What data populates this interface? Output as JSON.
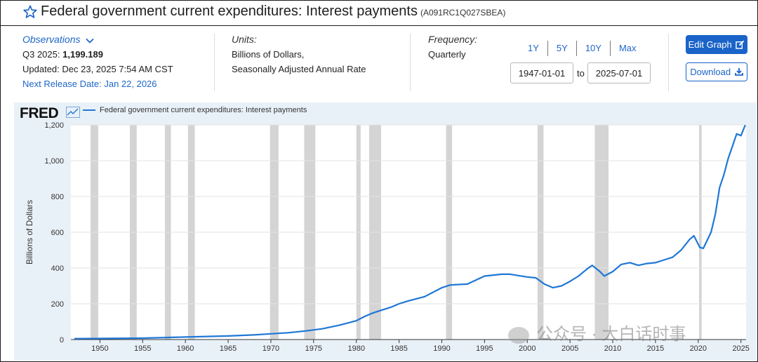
{
  "header": {
    "title": "Federal government current expenditures: Interest payments",
    "series_id": "(A091RC1Q027SBEA)"
  },
  "observations": {
    "label": "Observations",
    "period": "Q3 2025:",
    "value": "1,199.189",
    "updated": "Updated: Dec 23, 2025 7:54 AM CST",
    "next_release": "Next Release Date: Jan 22, 2026"
  },
  "units": {
    "label": "Units:",
    "line1": "Billions of Dollars,",
    "line2": "Seasonally Adjusted Annual Rate"
  },
  "frequency": {
    "label": "Frequency:",
    "value": "Quarterly"
  },
  "range_buttons": [
    "1Y",
    "5Y",
    "10Y",
    "Max"
  ],
  "date_range": {
    "start": "1947-01-01",
    "to": "to",
    "end": "2025-07-01"
  },
  "buttons": {
    "edit_graph": "Edit Graph",
    "download": "Download"
  },
  "brand": {
    "logo": "FRED"
  },
  "watermark": "公众号 · 大白话时事",
  "colors": {
    "accent": "#1a63c8",
    "line": "#1f77d6",
    "plot_bg": "#ffffff",
    "chart_bg": "#e9f1f8",
    "recession": "#d4d4d4"
  },
  "chart_data": {
    "type": "line",
    "title": "Federal government current expenditures: Interest payments",
    "legend": "Federal government current expenditures: Interest payments",
    "xlabel": "",
    "ylabel": "Billions of Dollars",
    "xlim": [
      1946.6,
      2025.6
    ],
    "ylim": [
      0,
      1200
    ],
    "x_ticks": [
      1950,
      1955,
      1960,
      1965,
      1970,
      1975,
      1980,
      1985,
      1990,
      1995,
      2000,
      2005,
      2010,
      2015,
      2020,
      2025
    ],
    "y_ticks": [
      0,
      200,
      400,
      600,
      800,
      1000,
      1200
    ],
    "y_tick_labels": [
      "0",
      "200",
      "400",
      "600",
      "800",
      "1,000",
      "1,200"
    ],
    "recessions": [
      [
        1948.9,
        1949.8
      ],
      [
        1953.5,
        1954.3
      ],
      [
        1957.6,
        1958.3
      ],
      [
        1960.3,
        1961.1
      ],
      [
        1969.9,
        1970.9
      ],
      [
        1973.9,
        1975.2
      ],
      [
        1980.0,
        1980.5
      ],
      [
        1981.5,
        1982.9
      ],
      [
        1990.5,
        1991.2
      ],
      [
        2001.2,
        2001.9
      ],
      [
        2007.9,
        2009.5
      ],
      [
        2020.1,
        2020.4
      ]
    ],
    "series": [
      {
        "name": "Federal government current expenditures: Interest payments",
        "x": [
          1947,
          1950,
          1955,
          1960,
          1965,
          1968,
          1970,
          1972,
          1974,
          1976,
          1978,
          1980,
          1981,
          1982,
          1984,
          1985,
          1986,
          1988,
          1990,
          1991,
          1993,
          1995,
          1997,
          1998,
          2000,
          2001,
          2002,
          2003,
          2004,
          2005,
          2006,
          2007,
          2007.6,
          2008.5,
          2009,
          2010,
          2011,
          2012,
          2013,
          2014,
          2015,
          2016,
          2017,
          2018,
          2019,
          2019.5,
          2020.2,
          2020.6,
          2021.5,
          2022,
          2022.5,
          2023,
          2023.5,
          2024,
          2024.5,
          2025,
          2025.5
        ],
        "values": [
          5,
          6,
          8,
          14,
          20,
          26,
          32,
          38,
          48,
          60,
          80,
          105,
          130,
          150,
          180,
          200,
          215,
          240,
          290,
          305,
          310,
          355,
          365,
          365,
          350,
          345,
          310,
          290,
          300,
          325,
          355,
          395,
          415,
          380,
          355,
          380,
          420,
          430,
          415,
          425,
          430,
          445,
          460,
          500,
          560,
          580,
          515,
          510,
          600,
          700,
          850,
          920,
          1010,
          1080,
          1150,
          1140,
          1199
        ]
      }
    ]
  }
}
